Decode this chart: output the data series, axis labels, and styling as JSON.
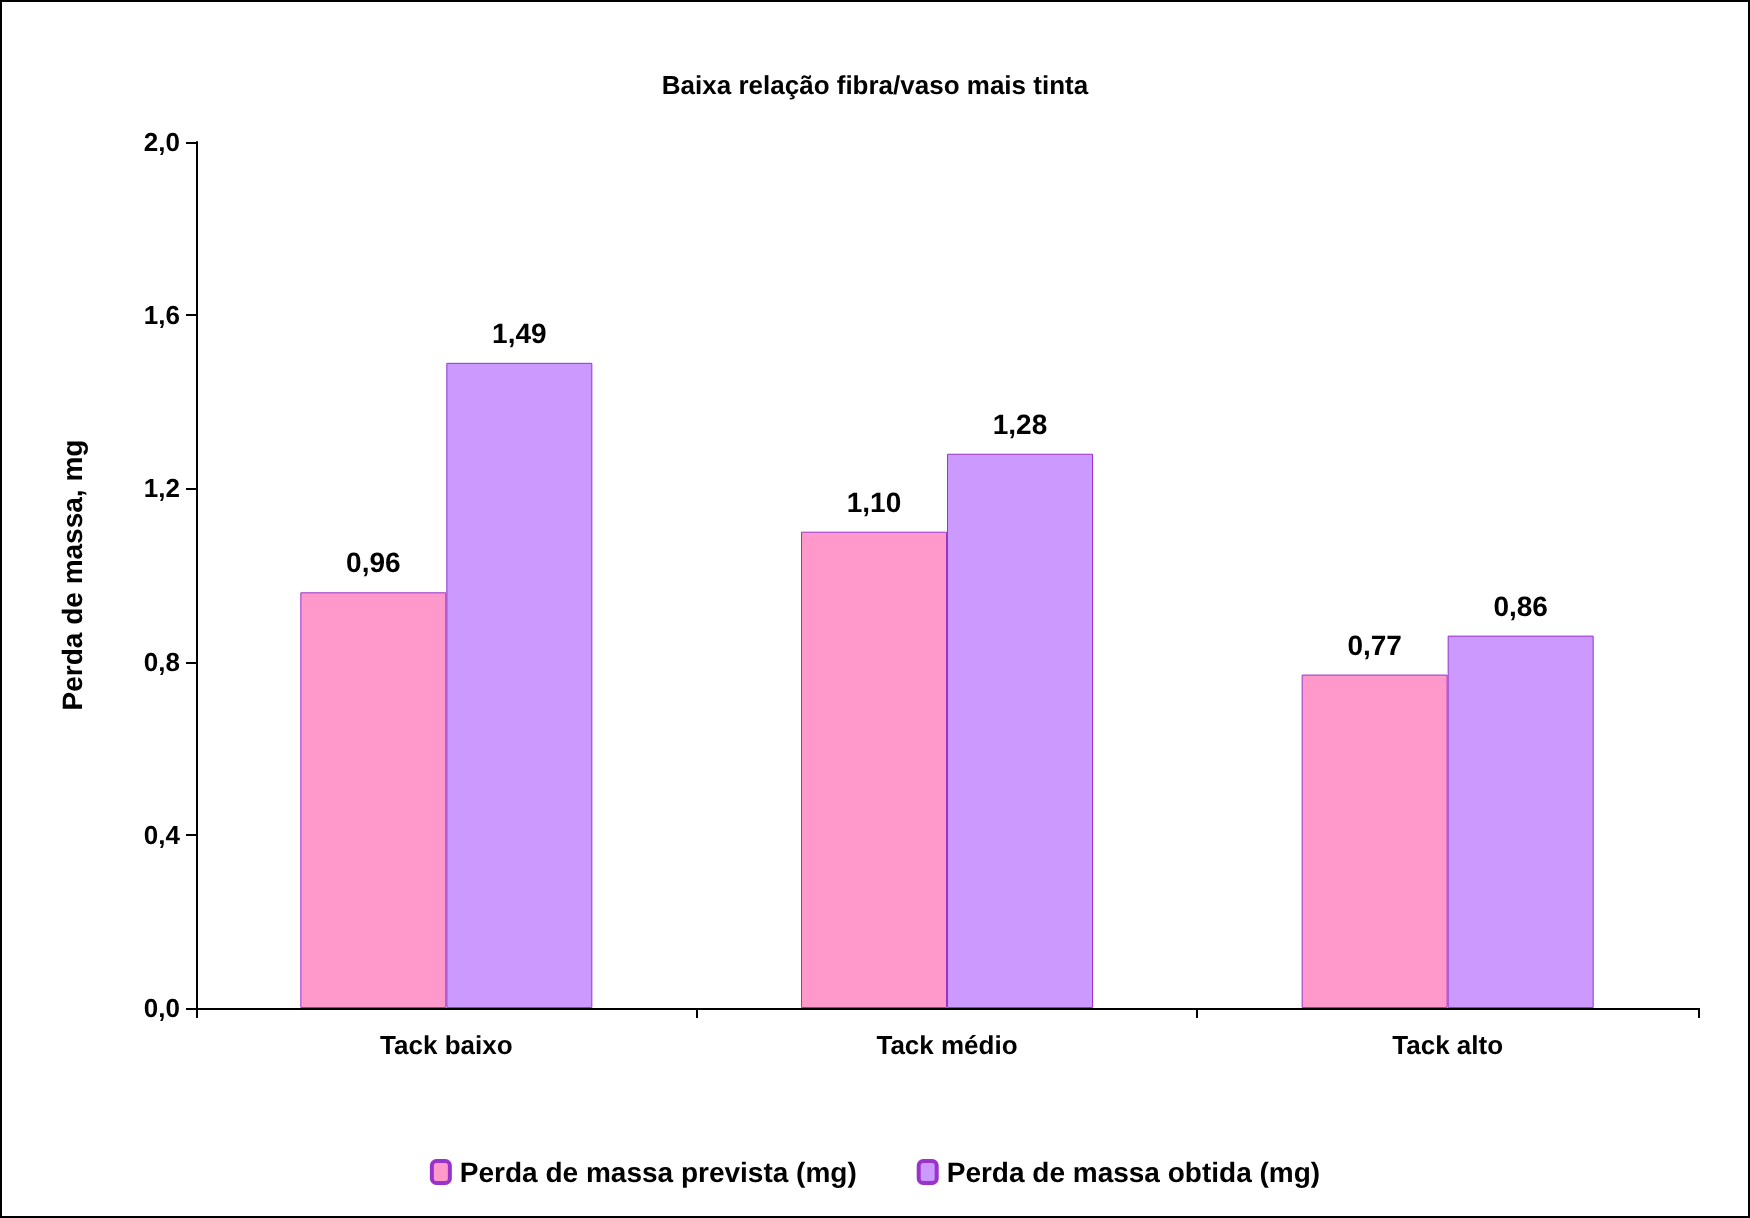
{
  "chart_data": {
    "type": "bar",
    "title": "Baixa relação fibra/vaso mais tinta",
    "ylabel": "Perda de massa, mg",
    "categories": [
      "Tack baixo",
      "Tack médio",
      "Tack alto"
    ],
    "series": [
      {
        "name": "Perda de massa prevista (mg)",
        "color": "#ff99cc",
        "values": [
          0.96,
          1.1,
          0.77
        ],
        "value_labels": [
          "0,96",
          "1,10",
          "0,77"
        ]
      },
      {
        "name": "Perda de massa obtida (mg)",
        "color": "#cc99ff",
        "values": [
          1.49,
          1.28,
          0.86
        ],
        "value_labels": [
          "1,49",
          "1,28",
          "0,86"
        ]
      }
    ],
    "ylim": [
      0,
      2
    ],
    "yticks": [
      {
        "value": 0,
        "label": "0,0"
      },
      {
        "value": 0.4,
        "label": "0,4"
      },
      {
        "value": 0.8,
        "label": "0,8"
      },
      {
        "value": 1.2,
        "label": "1,2"
      },
      {
        "value": 1.6,
        "label": "1,6"
      },
      {
        "value": 2,
        "label": "2,0"
      }
    ],
    "grid": false,
    "legend": "bottom"
  }
}
